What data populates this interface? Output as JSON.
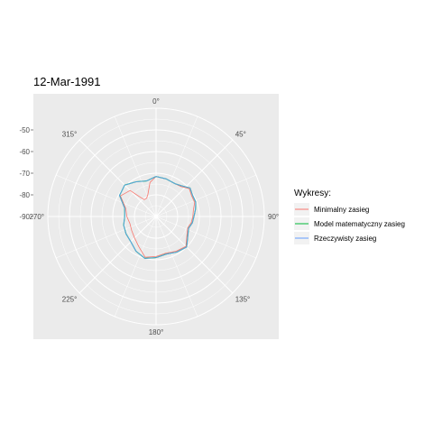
{
  "chart_data": {
    "type": "line",
    "coord": "polar",
    "title": "12-Mar-1991",
    "radial_axis": {
      "ticks": [
        -50,
        -60,
        -70,
        -80,
        -90
      ],
      "tick_labels": [
        "-50",
        "-60",
        "-70",
        "-80",
        "-90"
      ],
      "range": [
        -90,
        -40
      ]
    },
    "angle_axis": {
      "ticks": [
        0,
        45,
        90,
        135,
        180,
        225,
        270,
        315
      ],
      "tick_labels": [
        "0°",
        "45°",
        "90°",
        "135°",
        "180°",
        "225°",
        "270°",
        "315°"
      ]
    },
    "grid": true,
    "panel_background": "#ebebeb",
    "grid_color": "#ffffff",
    "legend": {
      "title": "Wykresy:",
      "position": "right"
    },
    "series": [
      {
        "name": "Minimalny zasieg",
        "color": "#F8766D",
        "points": [
          [
            0,
            -71.5
          ],
          [
            15,
            -72
          ],
          [
            30,
            -72.5
          ],
          [
            40,
            -72
          ],
          [
            50,
            -70
          ],
          [
            60,
            -71
          ],
          [
            70,
            -71
          ],
          [
            80,
            -72.5
          ],
          [
            90,
            -73
          ],
          [
            100,
            -73.5
          ],
          [
            110,
            -74.5
          ],
          [
            120,
            -73.5
          ],
          [
            135,
            -70.5
          ],
          [
            150,
            -71.5
          ],
          [
            165,
            -72.5
          ],
          [
            180,
            -71.5
          ],
          [
            195,
            -70.5
          ],
          [
            210,
            -74
          ],
          [
            225,
            -76
          ],
          [
            240,
            -77
          ],
          [
            255,
            -77.5
          ],
          [
            270,
            -76.5
          ],
          [
            285,
            -75.5
          ],
          [
            300,
            -71
          ],
          [
            315,
            -73
          ],
          [
            320,
            -78
          ],
          [
            325,
            -80.5
          ],
          [
            333,
            -80.5
          ],
          [
            340,
            -79
          ],
          [
            350,
            -74
          ],
          [
            360,
            -71.5
          ]
        ]
      },
      {
        "name": "Model matematyczny zasieg",
        "color": "#00BA38",
        "points": [
          [
            0,
            -71.5
          ],
          [
            15,
            -72
          ],
          [
            30,
            -72.5
          ],
          [
            40,
            -71.5
          ],
          [
            50,
            -69.5
          ],
          [
            60,
            -70.5
          ],
          [
            70,
            -70.5
          ],
          [
            80,
            -71.5
          ],
          [
            90,
            -72.5
          ],
          [
            100,
            -73
          ],
          [
            110,
            -74
          ],
          [
            120,
            -73
          ],
          [
            135,
            -70
          ],
          [
            150,
            -71
          ],
          [
            165,
            -72
          ],
          [
            180,
            -71
          ],
          [
            195,
            -70
          ],
          [
            210,
            -71.5
          ],
          [
            225,
            -73.5
          ],
          [
            240,
            -74
          ],
          [
            255,
            -74.5
          ],
          [
            270,
            -75.5
          ],
          [
            285,
            -75
          ],
          [
            300,
            -70.5
          ],
          [
            315,
            -69.5
          ],
          [
            330,
            -71.5
          ],
          [
            345,
            -73
          ],
          [
            360,
            -71.5
          ]
        ]
      },
      {
        "name": "Rzeczywisty zasieg",
        "color": "#619CFF",
        "points": [
          [
            0,
            -71.5
          ],
          [
            15,
            -72
          ],
          [
            30,
            -72.5
          ],
          [
            40,
            -71.5
          ],
          [
            50,
            -69.5
          ],
          [
            60,
            -70.5
          ],
          [
            70,
            -70.5
          ],
          [
            80,
            -71.5
          ],
          [
            90,
            -72.5
          ],
          [
            100,
            -73
          ],
          [
            110,
            -74
          ],
          [
            120,
            -73
          ],
          [
            135,
            -70
          ],
          [
            150,
            -71
          ],
          [
            165,
            -72
          ],
          [
            180,
            -71
          ],
          [
            195,
            -70
          ],
          [
            210,
            -71.5
          ],
          [
            225,
            -73.5
          ],
          [
            240,
            -74
          ],
          [
            255,
            -74.5
          ],
          [
            270,
            -75.5
          ],
          [
            285,
            -75
          ],
          [
            300,
            -70.5
          ],
          [
            315,
            -69.5
          ],
          [
            330,
            -71.5
          ],
          [
            345,
            -73
          ],
          [
            360,
            -71.5
          ]
        ]
      }
    ]
  }
}
